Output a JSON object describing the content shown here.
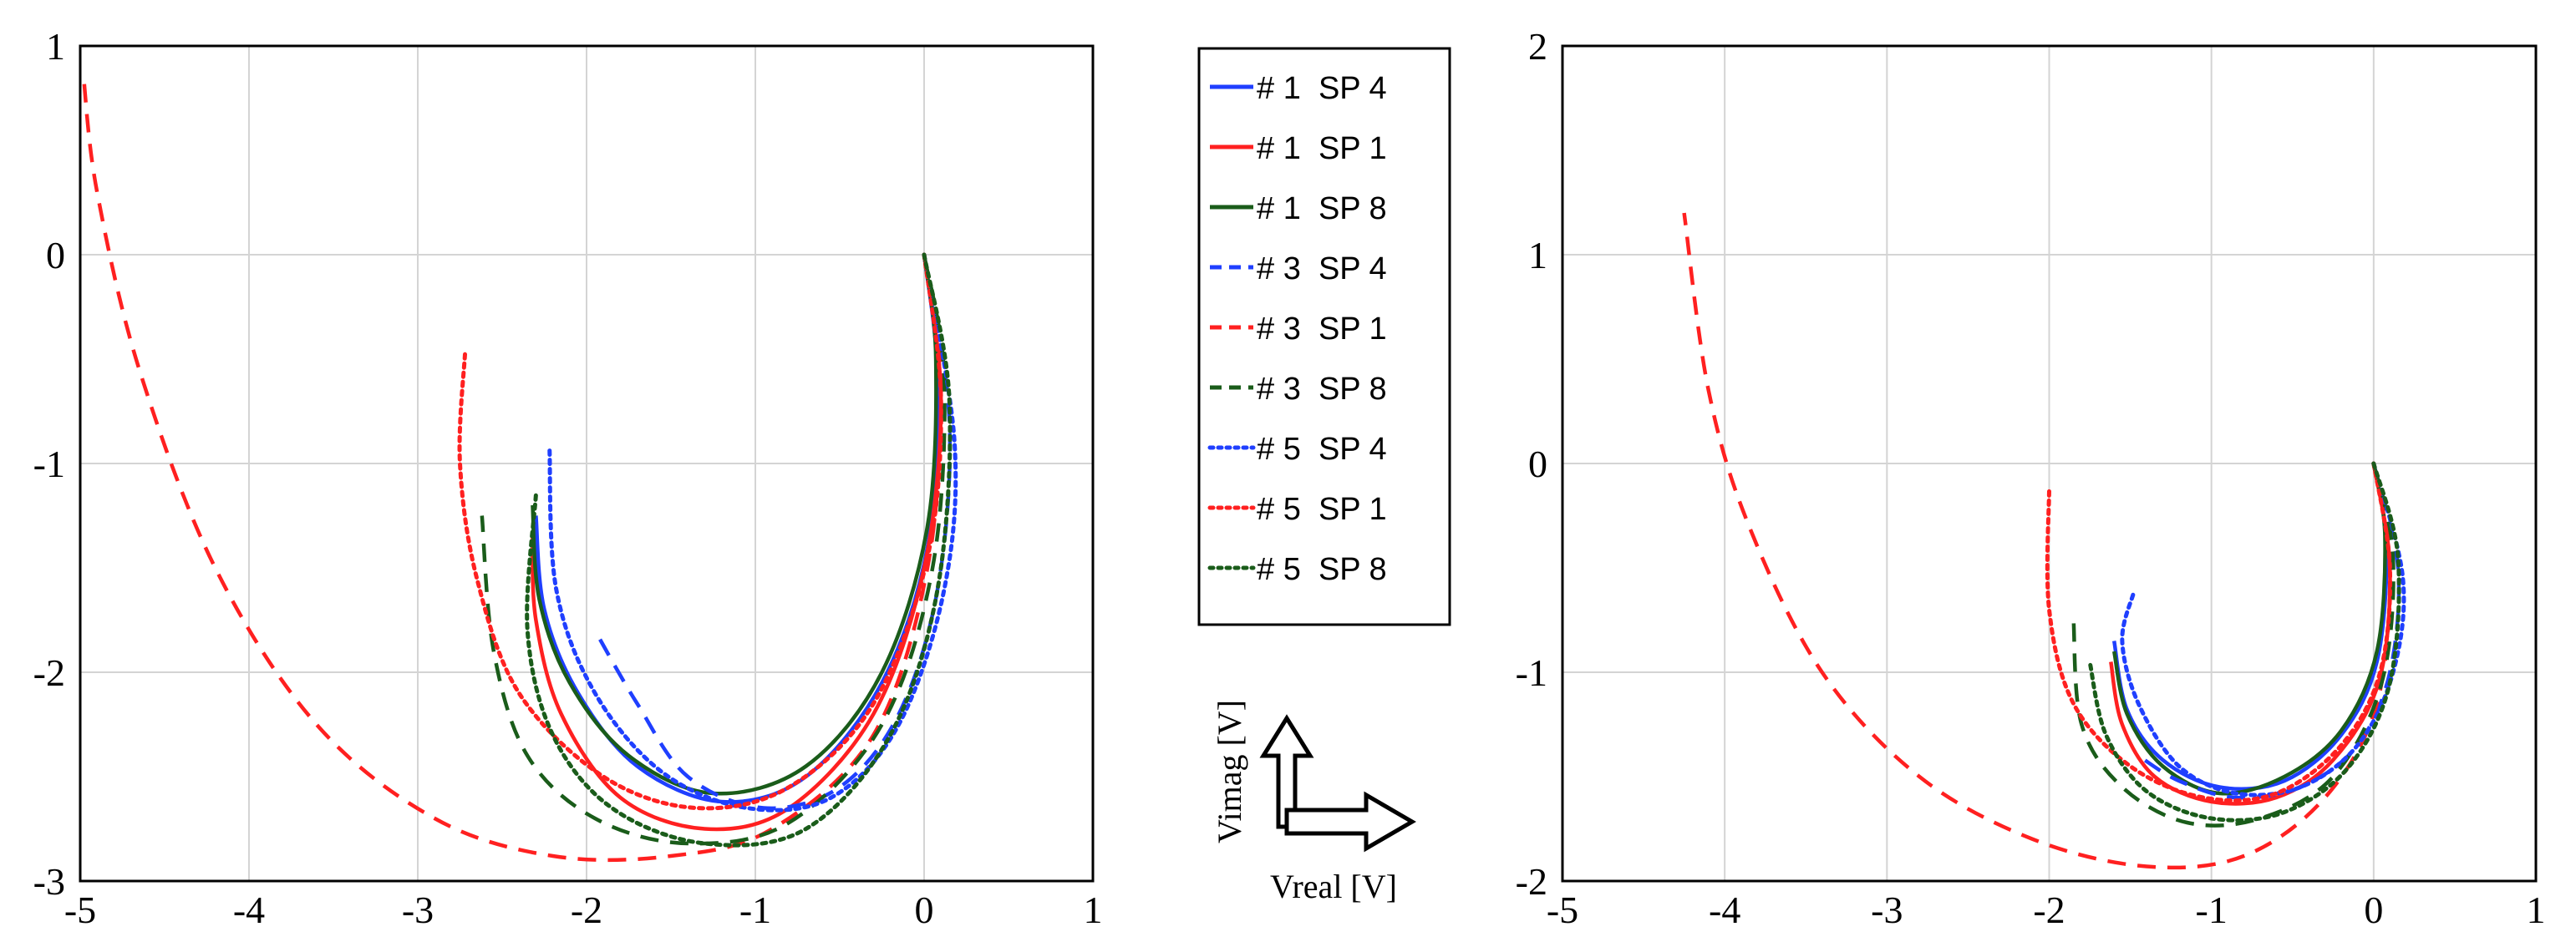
{
  "chart_data": [
    {
      "type": "line",
      "title": "",
      "xlabel": "",
      "ylabel": "",
      "xlim": [
        -5,
        1
      ],
      "ylim": [
        -3,
        1
      ],
      "xticks": [
        "-5",
        "-4",
        "-3",
        "-2",
        "-1",
        "0",
        "1"
      ],
      "yticks": [
        "-3",
        "-2",
        "-1",
        "0",
        "1"
      ],
      "grid": true,
      "series": [
        {
          "name": "# 1  SP 4",
          "color": "#1f3fff",
          "dash": "solid",
          "points": [
            [
              0,
              0
            ],
            [
              0.08,
              -0.6
            ],
            [
              0.02,
              -1.4
            ],
            [
              -0.25,
              -2.05
            ],
            [
              -0.7,
              -2.5
            ],
            [
              -1.2,
              -2.62
            ],
            [
              -1.7,
              -2.45
            ],
            [
              -2.05,
              -2.1
            ],
            [
              -2.25,
              -1.7
            ],
            [
              -2.3,
              -1.25
            ]
          ]
        },
        {
          "name": "# 1  SP 1",
          "color": "#ff2020",
          "dash": "solid",
          "points": [
            [
              0,
              0
            ],
            [
              0.1,
              -0.7
            ],
            [
              0.0,
              -1.5
            ],
            [
              -0.3,
              -2.2
            ],
            [
              -0.8,
              -2.65
            ],
            [
              -1.3,
              -2.75
            ],
            [
              -1.8,
              -2.6
            ],
            [
              -2.15,
              -2.2
            ],
            [
              -2.3,
              -1.75
            ],
            [
              -2.32,
              -1.35
            ]
          ]
        },
        {
          "name": "# 1  SP 8",
          "color": "#1a5c1a",
          "dash": "solid",
          "points": [
            [
              0,
              0
            ],
            [
              0.07,
              -0.5
            ],
            [
              0.02,
              -1.3
            ],
            [
              -0.25,
              -2.0
            ],
            [
              -0.7,
              -2.45
            ],
            [
              -1.25,
              -2.58
            ],
            [
              -1.75,
              -2.4
            ],
            [
              -2.1,
              -2.05
            ],
            [
              -2.28,
              -1.65
            ],
            [
              -2.32,
              -1.2
            ]
          ]
        },
        {
          "name": "# 3  SP 4",
          "color": "#1f3fff",
          "dash": "dash",
          "points": [
            [
              0,
              0
            ],
            [
              0.15,
              -0.8
            ],
            [
              0.08,
              -1.6
            ],
            [
              -0.15,
              -2.2
            ],
            [
              -0.5,
              -2.55
            ],
            [
              -0.95,
              -2.65
            ],
            [
              -1.4,
              -2.5
            ],
            [
              -1.7,
              -2.15
            ],
            [
              -1.95,
              -1.8
            ]
          ]
        },
        {
          "name": "# 3  SP 1",
          "color": "#ff2020",
          "dash": "dash",
          "points": [
            [
              0,
              0
            ],
            [
              0.1,
              -0.6
            ],
            [
              0.02,
              -1.5
            ],
            [
              -0.3,
              -2.3
            ],
            [
              -0.9,
              -2.75
            ],
            [
              -1.5,
              -2.88
            ],
            [
              -2.2,
              -2.88
            ],
            [
              -2.9,
              -2.7
            ],
            [
              -3.6,
              -2.25
            ],
            [
              -4.2,
              -1.5
            ],
            [
              -4.65,
              -0.55
            ],
            [
              -4.9,
              0.3
            ],
            [
              -4.98,
              0.85
            ]
          ]
        },
        {
          "name": "# 3  SP 8",
          "color": "#1a5c1a",
          "dash": "dash",
          "points": [
            [
              0,
              0
            ],
            [
              0.12,
              -0.6
            ],
            [
              0.05,
              -1.5
            ],
            [
              -0.25,
              -2.25
            ],
            [
              -0.8,
              -2.72
            ],
            [
              -1.4,
              -2.82
            ],
            [
              -1.95,
              -2.7
            ],
            [
              -2.35,
              -2.4
            ],
            [
              -2.55,
              -1.9
            ],
            [
              -2.62,
              -1.25
            ]
          ]
        },
        {
          "name": "# 5  SP 4",
          "color": "#1f3fff",
          "dash": "dot",
          "points": [
            [
              0,
              0
            ],
            [
              0.18,
              -0.9
            ],
            [
              0.12,
              -1.6
            ],
            [
              -0.15,
              -2.25
            ],
            [
              -0.55,
              -2.6
            ],
            [
              -1.05,
              -2.65
            ],
            [
              -1.55,
              -2.48
            ],
            [
              -1.95,
              -2.1
            ],
            [
              -2.18,
              -1.6
            ],
            [
              -2.22,
              -0.92
            ]
          ]
        },
        {
          "name": "# 5  SP 1",
          "color": "#ff2020",
          "dash": "dot",
          "points": [
            [
              0,
              0
            ],
            [
              0.1,
              -0.7
            ],
            [
              0.02,
              -1.45
            ],
            [
              -0.3,
              -2.15
            ],
            [
              -0.8,
              -2.55
            ],
            [
              -1.35,
              -2.65
            ],
            [
              -1.9,
              -2.5
            ],
            [
              -2.4,
              -2.1
            ],
            [
              -2.65,
              -1.55
            ],
            [
              -2.75,
              -1.0
            ],
            [
              -2.72,
              -0.47
            ]
          ]
        },
        {
          "name": "# 5  SP 8",
          "color": "#1a5c1a",
          "dash": "dot",
          "points": [
            [
              0,
              0
            ],
            [
              0.15,
              -0.7
            ],
            [
              0.08,
              -1.6
            ],
            [
              -0.2,
              -2.3
            ],
            [
              -0.7,
              -2.75
            ],
            [
              -1.3,
              -2.82
            ],
            [
              -1.85,
              -2.65
            ],
            [
              -2.2,
              -2.3
            ],
            [
              -2.35,
              -1.8
            ],
            [
              -2.3,
              -1.15
            ]
          ]
        }
      ]
    },
    {
      "type": "line",
      "title": "",
      "xlabel": "",
      "ylabel": "",
      "xlim": [
        -5,
        1
      ],
      "ylim": [
        -2,
        2
      ],
      "xticks": [
        "-5",
        "-4",
        "-3",
        "-2",
        "-1",
        "0",
        "1"
      ],
      "yticks": [
        "-2",
        "-1",
        "0",
        "1",
        "2"
      ],
      "grid": true,
      "series": [
        {
          "name": "# 1  SP 4",
          "color": "#1f3fff",
          "dash": "solid",
          "points": [
            [
              0,
              0
            ],
            [
              0.08,
              -0.4
            ],
            [
              0.02,
              -0.95
            ],
            [
              -0.2,
              -1.3
            ],
            [
              -0.55,
              -1.52
            ],
            [
              -0.95,
              -1.55
            ],
            [
              -1.3,
              -1.42
            ],
            [
              -1.52,
              -1.18
            ],
            [
              -1.6,
              -0.85
            ]
          ]
        },
        {
          "name": "# 1  SP 1",
          "color": "#ff2020",
          "dash": "solid",
          "points": [
            [
              0,
              0
            ],
            [
              0.1,
              -0.5
            ],
            [
              0.03,
              -1.05
            ],
            [
              -0.25,
              -1.42
            ],
            [
              -0.6,
              -1.6
            ],
            [
              -1.0,
              -1.62
            ],
            [
              -1.35,
              -1.5
            ],
            [
              -1.55,
              -1.25
            ],
            [
              -1.62,
              -0.95
            ]
          ]
        },
        {
          "name": "# 1  SP 8",
          "color": "#1a5c1a",
          "dash": "solid",
          "points": [
            [
              0,
              0
            ],
            [
              0.07,
              -0.35
            ],
            [
              0.02,
              -0.9
            ],
            [
              -0.2,
              -1.28
            ],
            [
              -0.55,
              -1.5
            ],
            [
              -0.95,
              -1.58
            ],
            [
              -1.3,
              -1.45
            ],
            [
              -1.52,
              -1.2
            ],
            [
              -1.6,
              -0.9
            ]
          ]
        },
        {
          "name": "# 3  SP 4",
          "color": "#1f3fff",
          "dash": "dash",
          "points": [
            [
              0,
              0
            ],
            [
              0.15,
              -0.5
            ],
            [
              0.1,
              -1.0
            ],
            [
              -0.1,
              -1.35
            ],
            [
              -0.45,
              -1.55
            ],
            [
              -0.85,
              -1.6
            ],
            [
              -1.2,
              -1.52
            ],
            [
              -1.45,
              -1.4
            ]
          ]
        },
        {
          "name": "# 3  SP 1",
          "color": "#ff2020",
          "dash": "dash",
          "points": [
            [
              0,
              0
            ],
            [
              0.1,
              -0.5
            ],
            [
              0.02,
              -1.15
            ],
            [
              -0.3,
              -1.6
            ],
            [
              -0.8,
              -1.88
            ],
            [
              -1.4,
              -1.93
            ],
            [
              -2.1,
              -1.8
            ],
            [
              -2.8,
              -1.5
            ],
            [
              -3.4,
              -1.0
            ],
            [
              -3.85,
              -0.3
            ],
            [
              -4.1,
              0.35
            ],
            [
              -4.25,
              1.2
            ]
          ]
        },
        {
          "name": "# 3  SP 8",
          "color": "#1a5c1a",
          "dash": "dash",
          "points": [
            [
              0,
              0
            ],
            [
              0.12,
              -0.45
            ],
            [
              0.05,
              -1.05
            ],
            [
              -0.25,
              -1.5
            ],
            [
              -0.7,
              -1.7
            ],
            [
              -1.15,
              -1.72
            ],
            [
              -1.55,
              -1.55
            ],
            [
              -1.8,
              -1.25
            ],
            [
              -1.85,
              -0.75
            ]
          ]
        },
        {
          "name": "# 5  SP 4",
          "color": "#1f3fff",
          "dash": "dot",
          "points": [
            [
              0,
              0
            ],
            [
              0.18,
              -0.55
            ],
            [
              0.12,
              -1.0
            ],
            [
              -0.1,
              -1.35
            ],
            [
              -0.45,
              -1.55
            ],
            [
              -0.85,
              -1.58
            ],
            [
              -1.2,
              -1.45
            ],
            [
              -1.45,
              -1.15
            ],
            [
              -1.55,
              -0.85
            ],
            [
              -1.48,
              -0.62
            ]
          ]
        },
        {
          "name": "# 5  SP 1",
          "color": "#ff2020",
          "dash": "dot",
          "points": [
            [
              0,
              0
            ],
            [
              0.1,
              -0.5
            ],
            [
              0.04,
              -1.0
            ],
            [
              -0.2,
              -1.35
            ],
            [
              -0.6,
              -1.58
            ],
            [
              -1.05,
              -1.6
            ],
            [
              -1.5,
              -1.45
            ],
            [
              -1.85,
              -1.15
            ],
            [
              -2.0,
              -0.7
            ],
            [
              -2.0,
              -0.12
            ]
          ]
        },
        {
          "name": "# 5  SP 8",
          "color": "#1a5c1a",
          "dash": "dot",
          "points": [
            [
              0,
              0
            ],
            [
              0.15,
              -0.45
            ],
            [
              0.1,
              -1.05
            ],
            [
              -0.15,
              -1.45
            ],
            [
              -0.55,
              -1.67
            ],
            [
              -1.0,
              -1.7
            ],
            [
              -1.4,
              -1.57
            ],
            [
              -1.65,
              -1.3
            ],
            [
              -1.75,
              -0.95
            ]
          ]
        }
      ]
    }
  ],
  "legend": {
    "entries": [
      "# 1  SP 4",
      "# 1  SP 1",
      "# 1  SP 8",
      "# 3  SP 4",
      "# 3  SP 1",
      "# 3  SP 8",
      "# 5  SP 4",
      "# 5  SP 1",
      "# 5  SP 8"
    ]
  },
  "axes_indicator": {
    "vertical_label": "Vimag [V]",
    "horizontal_label": "Vreal [V]"
  }
}
